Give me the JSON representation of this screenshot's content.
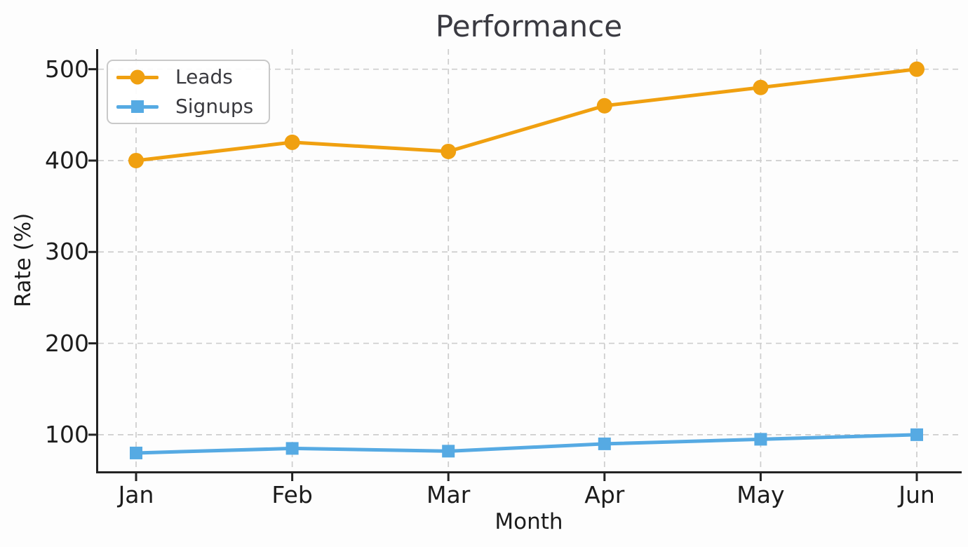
{
  "figure": {
    "background": "#FDFDFD"
  },
  "chart_data": {
    "type": "line",
    "title": "Performance",
    "xlabel": "Month",
    "ylabel": "Rate (%)",
    "categories": [
      "Jan",
      "Feb",
      "Mar",
      "Apr",
      "May",
      "Jun"
    ],
    "series": [
      {
        "name": "Leads",
        "color": "#F0A010",
        "marker": "circle",
        "values": [
          400,
          420,
          410,
          460,
          480,
          500
        ]
      },
      {
        "name": "Signups",
        "color": "#56AAE3",
        "marker": "square",
        "values": [
          80,
          85,
          82,
          90,
          95,
          100
        ]
      }
    ],
    "yticks": [
      100,
      200,
      300,
      400,
      500
    ],
    "ylim": [
      60,
      522
    ],
    "grid": true,
    "grid_style": "dashed",
    "legend_position": "upper-left",
    "colors": {
      "grid": "#CDCDCD",
      "spine": "#232323",
      "tick_text": "#1C1C1C",
      "title_text": "#3A3A41",
      "legend_border": "#C9C9C9",
      "legend_text": "#3A3A3F"
    }
  },
  "legend": {
    "items": [
      {
        "label": "Leads",
        "marker": "circle"
      },
      {
        "label": "Signups",
        "marker": "square"
      }
    ]
  }
}
